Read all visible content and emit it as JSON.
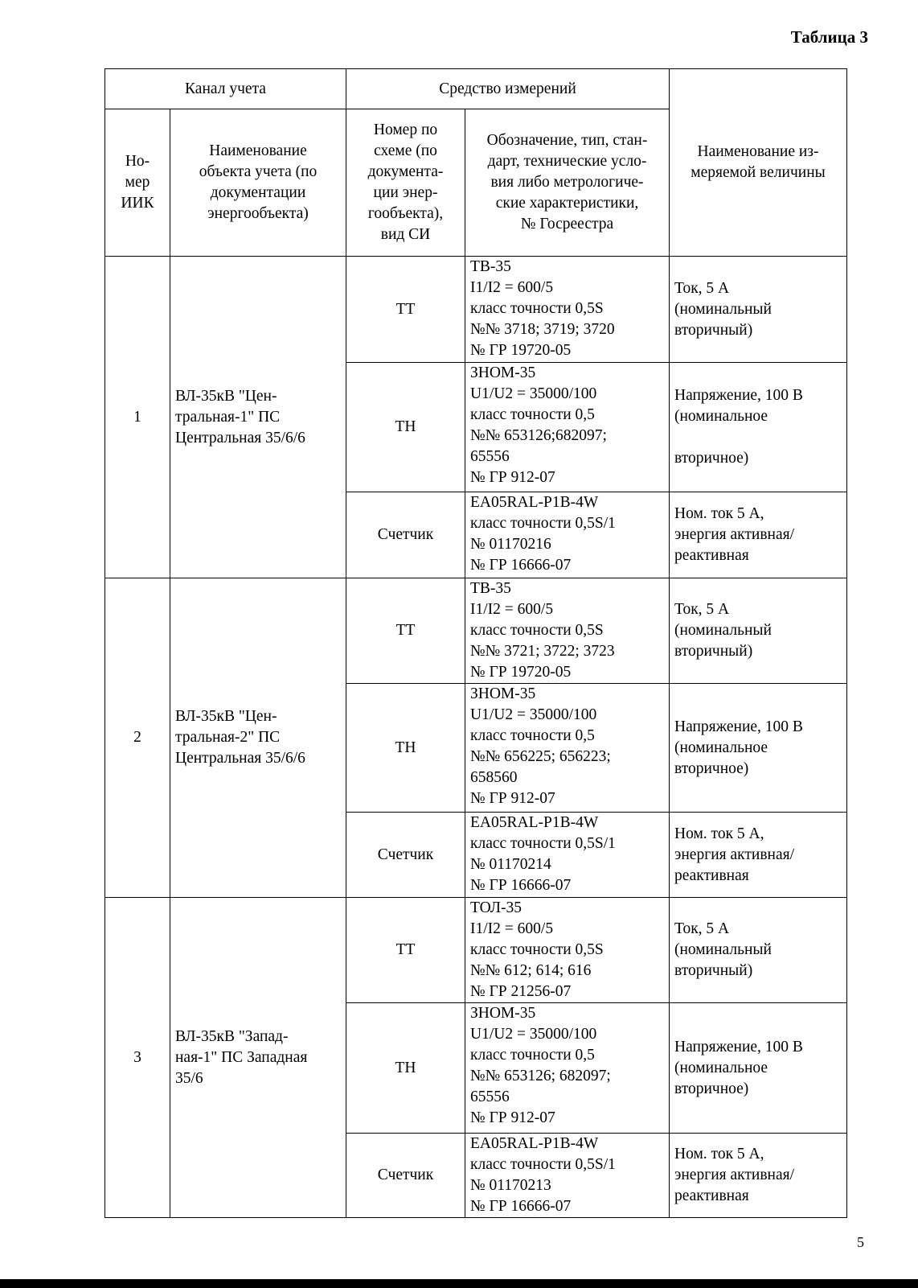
{
  "table_title": "Таблица 3",
  "headers": {
    "channel_group": "Канал учета",
    "instrument_group": "Средство измерений",
    "iik_number": [
      "Но-",
      "мер",
      "ИИК"
    ],
    "object_name": [
      "Наименование",
      "объекта учета (по",
      "документации",
      "энергообъекта)"
    ],
    "scheme_number": [
      "Номер по",
      "схеме (по",
      "документа-",
      "ции энер-",
      "гообъекта),",
      "вид СИ"
    ],
    "designation": [
      "Обозначение, тип, стан-",
      "дарт, технические усло-",
      "вия либо метрологиче-",
      "ские характеристики,",
      "№ Госреестра"
    ],
    "quantity_name": [
      "Наименование из-",
      "меряемой величины"
    ]
  },
  "channels": [
    {
      "number": "1",
      "object": [
        "ВЛ-35кВ \"Цен-",
        "тральная-1\" ПС",
        "Центральная 35/6/6"
      ],
      "instruments": [
        {
          "type": "ТТ",
          "spec": [
            "ТВ-35",
            "I1/I2 = 600/5",
            "класс точности 0,5S",
            "№№ 3718; 3719; 3720",
            "№ ГР 19720-05"
          ],
          "quantity": [
            "Ток, 5 А",
            "(номинальный",
            "вторичный)"
          ]
        },
        {
          "type": "ТН",
          "spec": [
            "ЗНОМ-35",
            "U1/U2 = 35000/100",
            "класс точности 0,5",
            "№№ 653126;682097;",
            "65556",
            "№ ГР 912-07"
          ],
          "quantity": [
            "Напряжение, 100 В",
            "(номинальное",
            "",
            "вторичное)"
          ]
        },
        {
          "type": "Счетчик",
          "spec": [
            "EA05RAL-P1B-4W",
            "класс точности 0,5S/1",
            "№ 01170216",
            "№ ГР 16666-07"
          ],
          "quantity": [
            "Ном. ток 5 А,",
            "энергия активная/",
            "реактивная"
          ]
        }
      ]
    },
    {
      "number": "2",
      "object": [
        "ВЛ-35кВ \"Цен-",
        "тральная-2\" ПС",
        "Центральная 35/6/6"
      ],
      "instruments": [
        {
          "type": "ТТ",
          "spec": [
            "ТВ-35",
            "I1/I2 = 600/5",
            "класс точности 0,5S",
            "№№ 3721; 3722; 3723",
            "№ ГР 19720-05"
          ],
          "quantity": [
            "Ток, 5 А",
            "(номинальный",
            "вторичный)"
          ]
        },
        {
          "type": "ТН",
          "spec": [
            "ЗНОМ-35",
            "U1/U2 = 35000/100",
            "класс точности 0,5",
            "№№ 656225; 656223;",
            "658560",
            "№ ГР 912-07"
          ],
          "quantity": [
            "Напряжение, 100 В",
            "(номинальное",
            "вторичное)"
          ]
        },
        {
          "type": "Счетчик",
          "spec": [
            "EA05RAL-P1B-4W",
            "класс точности 0,5S/1",
            "№ 01170214",
            "№ ГР 16666-07"
          ],
          "quantity": [
            "Ном. ток 5 А,",
            "энергия активная/",
            "реактивная"
          ]
        }
      ]
    },
    {
      "number": "3",
      "object": [
        "ВЛ-35кВ \"Запад-",
        "ная-1\" ПС Западная",
        "35/6"
      ],
      "instruments": [
        {
          "type": "ТТ",
          "spec": [
            "ТОЛ-35",
            "I1/I2 = 600/5",
            "класс точности 0,5S",
            "№№ 612; 614; 616",
            "№ ГР 21256-07"
          ],
          "quantity": [
            "Ток, 5 А",
            "(номинальный",
            "вторичный)"
          ]
        },
        {
          "type": "ТН",
          "spec": [
            "ЗНОМ-35",
            "U1/U2 = 35000/100",
            "класс точности 0,5",
            "№№ 653126; 682097;",
            "65556",
            "№ ГР 912-07"
          ],
          "quantity": [
            "Напряжение, 100 В",
            "(номинальное",
            "вторичное)"
          ]
        },
        {
          "type": "Счетчик",
          "spec": [
            "EA05RAL-P1B-4W",
            "класс точности 0,5S/1",
            "№ 01170213",
            "№ ГР 16666-07"
          ],
          "quantity": [
            "Ном. ток 5 А,",
            "энергия активная/",
            "реактивная"
          ]
        }
      ]
    }
  ],
  "page_number": "5"
}
